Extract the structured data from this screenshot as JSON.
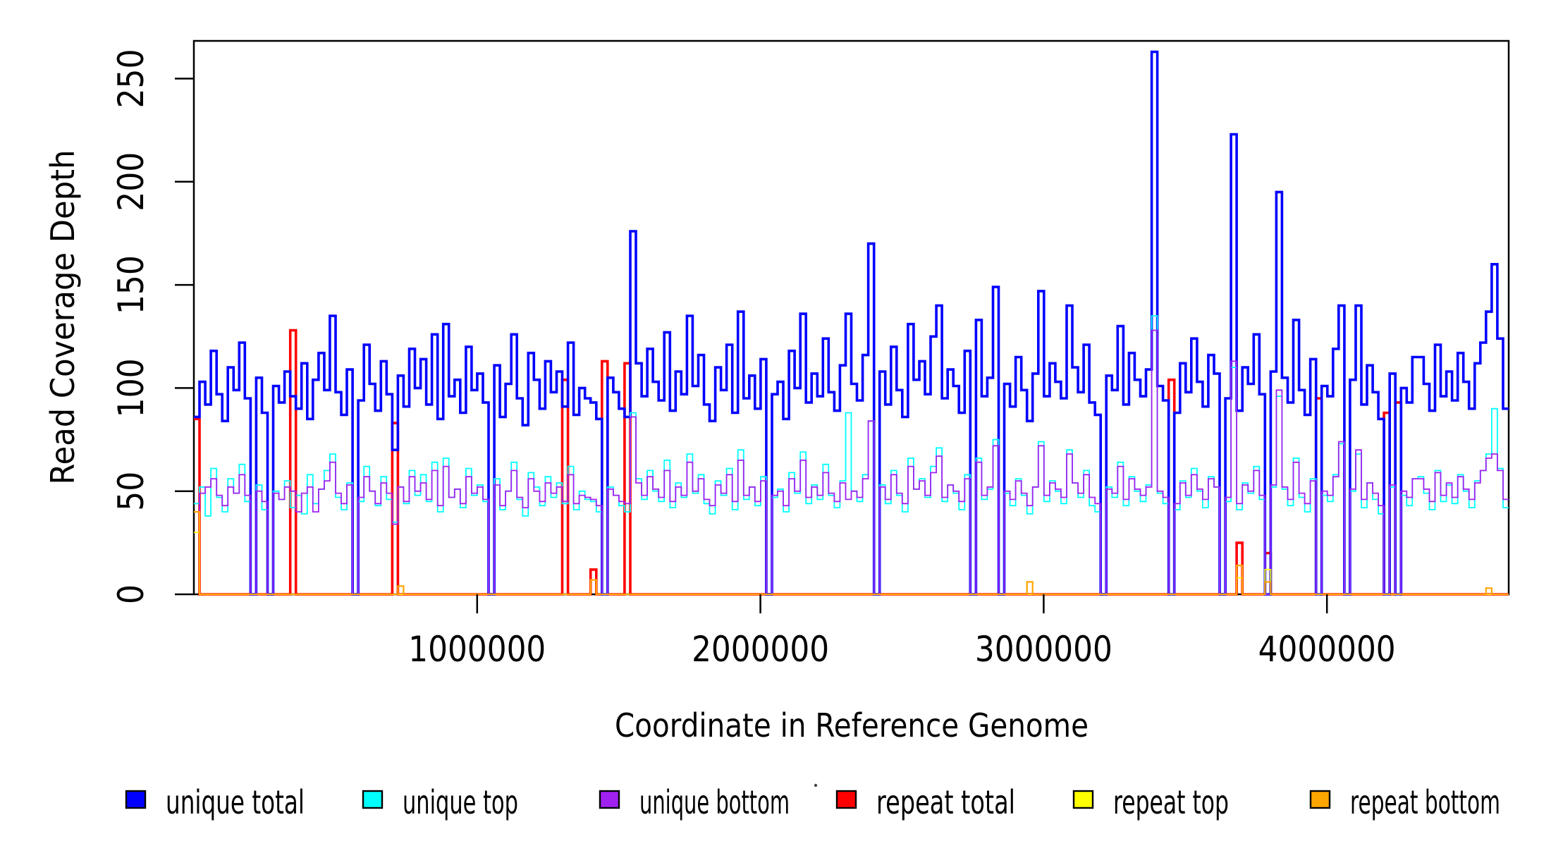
{
  "figure": {
    "background": "#FFFFFF"
  },
  "chart_data": {
    "type": "line",
    "subtype": "step-coverage",
    "title": "",
    "xlabel": "Coordinate in Reference Genome",
    "ylabel": "Read Coverage Depth",
    "xlim": [
      0,
      4641652
    ],
    "ylim": [
      0,
      268
    ],
    "x_ticks": [
      {
        "value": 1000000,
        "label": "1000000"
      },
      {
        "value": 2000000,
        "label": "2000000"
      },
      {
        "value": 3000000,
        "label": "3000000"
      },
      {
        "value": 4000000,
        "label": "4000000"
      }
    ],
    "y_ticks": [
      {
        "value": 0,
        "label": "0"
      },
      {
        "value": 50,
        "label": "50"
      },
      {
        "value": 100,
        "label": "100"
      },
      {
        "value": 150,
        "label": "150"
      },
      {
        "value": 200,
        "label": "200"
      },
      {
        "value": 250,
        "label": "250"
      }
    ],
    "grid": false,
    "legend_position": "bottom",
    "n_bins": 232,
    "bin_size_bp": 20000,
    "series": [
      {
        "name": "unique total",
        "color": "#0000FF",
        "stroke_width": 3.6,
        "z": 2,
        "values": [
          86,
          103,
          92,
          118,
          97,
          84,
          110,
          99,
          122,
          95,
          0,
          105,
          88,
          0,
          101,
          93,
          108,
          96,
          90,
          112,
          85,
          104,
          117,
          99,
          135,
          98,
          87,
          109,
          0,
          94,
          121,
          102,
          89,
          113,
          97,
          70,
          106,
          91,
          119,
          100,
          114,
          92,
          126,
          85,
          131,
          96,
          104,
          88,
          120,
          99,
          107,
          93,
          0,
          111,
          86,
          102,
          126,
          95,
          82,
          117,
          104,
          90,
          113,
          98,
          108,
          91,
          122,
          87,
          100,
          95,
          93,
          85,
          0,
          105,
          98,
          90,
          86,
          176,
          112,
          96,
          119,
          103,
          94,
          127,
          89,
          108,
          97,
          135,
          101,
          116,
          92,
          84,
          110,
          99,
          121,
          88,
          137,
          95,
          106,
          90,
          114,
          0,
          97,
          103,
          85,
          118,
          100,
          136,
          93,
          107,
          96,
          124,
          98,
          89,
          111,
          136,
          102,
          94,
          116,
          170,
          0,
          108,
          92,
          120,
          99,
          86,
          131,
          104,
          113,
          97,
          125,
          140,
          95,
          109,
          101,
          88,
          118,
          0,
          133,
          96,
          105,
          149,
          0,
          102,
          91,
          115,
          99,
          84,
          107,
          147,
          96,
          112,
          103,
          95,
          140,
          110,
          98,
          121,
          93,
          87,
          0,
          106,
          99,
          130,
          92,
          117,
          104,
          96,
          109,
          263,
          101,
          94,
          0,
          88,
          112,
          98,
          124,
          103,
          91,
          116,
          107,
          0,
          95,
          223,
          89,
          110,
          102,
          126,
          97,
          0,
          108,
          195,
          105,
          93,
          133,
          99,
          87,
          114,
          0,
          101,
          96,
          119,
          140,
          0,
          104,
          140,
          92,
          111,
          98,
          85,
          0,
          107,
          0,
          100,
          93,
          115,
          115,
          102,
          89,
          121,
          96,
          108,
          94,
          117,
          103,
          90,
          112,
          122,
          137,
          160,
          124,
          90
        ]
      },
      {
        "name": "unique top",
        "color": "#00FFFF",
        "stroke_width": 1.8,
        "z": 3,
        "values": [
          44,
          52,
          38,
          61,
          47,
          40,
          56,
          49,
          63,
          45,
          0,
          53,
          41,
          0,
          50,
          46,
          55,
          42,
          48,
          39,
          58,
          44,
          51,
          60,
          68,
          47,
          41,
          54,
          0,
          45,
          62,
          50,
          43,
          57,
          46,
          35,
          52,
          44,
          60,
          48,
          58,
          45,
          64,
          40,
          66,
          47,
          51,
          42,
          61,
          48,
          53,
          45,
          0,
          56,
          41,
          50,
          64,
          46,
          38,
          59,
          52,
          43,
          57,
          47,
          54,
          44,
          62,
          41,
          50,
          46,
          45,
          40,
          0,
          52,
          48,
          43,
          40,
          88,
          56,
          46,
          60,
          50,
          45,
          65,
          42,
          54,
          47,
          68,
          49,
          58,
          44,
          39,
          55,
          48,
          61,
          41,
          70,
          46,
          52,
          43,
          57,
          0,
          47,
          51,
          40,
          59,
          49,
          69,
          44,
          53,
          46,
          63,
          48,
          42,
          55,
          88,
          50,
          45,
          58,
          84,
          0,
          53,
          44,
          60,
          48,
          40,
          66,
          51,
          56,
          47,
          62,
          71,
          45,
          53,
          49,
          41,
          58,
          0,
          66,
          46,
          51,
          75,
          0,
          49,
          43,
          56,
          48,
          39,
          52,
          74,
          45,
          55,
          50,
          44,
          70,
          54,
          47,
          60,
          43,
          40,
          0,
          52,
          47,
          64,
          43,
          57,
          50,
          45,
          53,
          135,
          49,
          44,
          0,
          41,
          55,
          47,
          61,
          50,
          42,
          57,
          52,
          0,
          45,
          110,
          41,
          54,
          49,
          62,
          46,
          0,
          52,
          96,
          51,
          43,
          66,
          47,
          40,
          56,
          0,
          48,
          45,
          58,
          73,
          0,
          50,
          68,
          42,
          54,
          46,
          39,
          0,
          52,
          0,
          48,
          43,
          56,
          57,
          49,
          41,
          60,
          45,
          53,
          44,
          58,
          50,
          42,
          55,
          60,
          68,
          90,
          61,
          42
        ]
      },
      {
        "name": "unique bottom",
        "color": "#A020F0",
        "stroke_width": 1.8,
        "z": 4,
        "values": [
          40,
          49,
          52,
          56,
          48,
          43,
          52,
          49,
          58,
          48,
          0,
          50,
          45,
          0,
          49,
          46,
          52,
          50,
          40,
          49,
          52,
          40,
          51,
          55,
          64,
          49,
          44,
          53,
          0,
          47,
          57,
          50,
          44,
          54,
          49,
          34,
          52,
          45,
          57,
          50,
          54,
          46,
          60,
          43,
          62,
          47,
          51,
          44,
          57,
          49,
          52,
          46,
          0,
          53,
          43,
          50,
          60,
          47,
          42,
          56,
          50,
          45,
          54,
          49,
          52,
          45,
          58,
          44,
          48,
          47,
          46,
          43,
          0,
          51,
          48,
          45,
          44,
          86,
          54,
          48,
          57,
          51,
          47,
          60,
          45,
          52,
          48,
          64,
          50,
          56,
          46,
          43,
          53,
          49,
          58,
          45,
          65,
          48,
          52,
          45,
          55,
          0,
          48,
          50,
          43,
          56,
          50,
          65,
          47,
          52,
          48,
          59,
          49,
          45,
          54,
          46,
          50,
          47,
          56,
          84,
          0,
          52,
          46,
          58,
          49,
          44,
          62,
          51,
          55,
          48,
          59,
          67,
          47,
          53,
          50,
          45,
          56,
          0,
          64,
          48,
          52,
          72,
          0,
          50,
          46,
          55,
          49,
          43,
          52,
          72,
          48,
          54,
          51,
          47,
          68,
          54,
          49,
          58,
          47,
          44,
          0,
          51,
          49,
          62,
          46,
          56,
          51,
          48,
          52,
          128,
          50,
          47,
          0,
          44,
          54,
          48,
          58,
          51,
          46,
          56,
          52,
          0,
          47,
          113,
          44,
          53,
          50,
          60,
          48,
          0,
          53,
          99,
          52,
          46,
          64,
          49,
          44,
          55,
          0,
          50,
          48,
          57,
          74,
          0,
          51,
          70,
          46,
          54,
          49,
          43,
          0,
          53,
          0,
          50,
          47,
          56,
          56,
          51,
          45,
          59,
          48,
          54,
          47,
          57,
          51,
          46,
          54,
          60,
          66,
          68,
          60,
          46
        ]
      },
      {
        "name": "repeat total",
        "color": "#FF0000",
        "stroke_width": 3.6,
        "z": 1,
        "sparse": {
          "0": 85,
          "17": 128,
          "35": 83,
          "65": 104,
          "70": 12,
          "72": 113,
          "76": 112,
          "172": 104,
          "184": 25,
          "189": 20,
          "198": 95,
          "210": 88,
          "212": 93
        }
      },
      {
        "name": "repeat top",
        "color": "#FFFF00",
        "stroke_width": 1.8,
        "z": 5,
        "sparse": {
          "0": 30,
          "70": 7,
          "184": 8,
          "189": 12
        }
      },
      {
        "name": "repeat bottom",
        "color": "#FFA500",
        "stroke_width": 2.2,
        "z": 6,
        "sparse": {
          "0": 40,
          "36": 4,
          "70": 7,
          "147": 6,
          "184": 14,
          "189": 6,
          "228": 3
        }
      }
    ]
  },
  "legend": {
    "items": [
      {
        "label": "unique total",
        "color": "#0000FF"
      },
      {
        "label": "unique top",
        "color": "#00FFFF"
      },
      {
        "label": "unique bottom",
        "color": "#A020F0"
      },
      {
        "label": "repeat total",
        "color": "#FF0000"
      },
      {
        "label": "repeat top",
        "color": "#FFFF00"
      },
      {
        "label": "repeat bottom",
        "color": "#FFA500"
      }
    ]
  }
}
